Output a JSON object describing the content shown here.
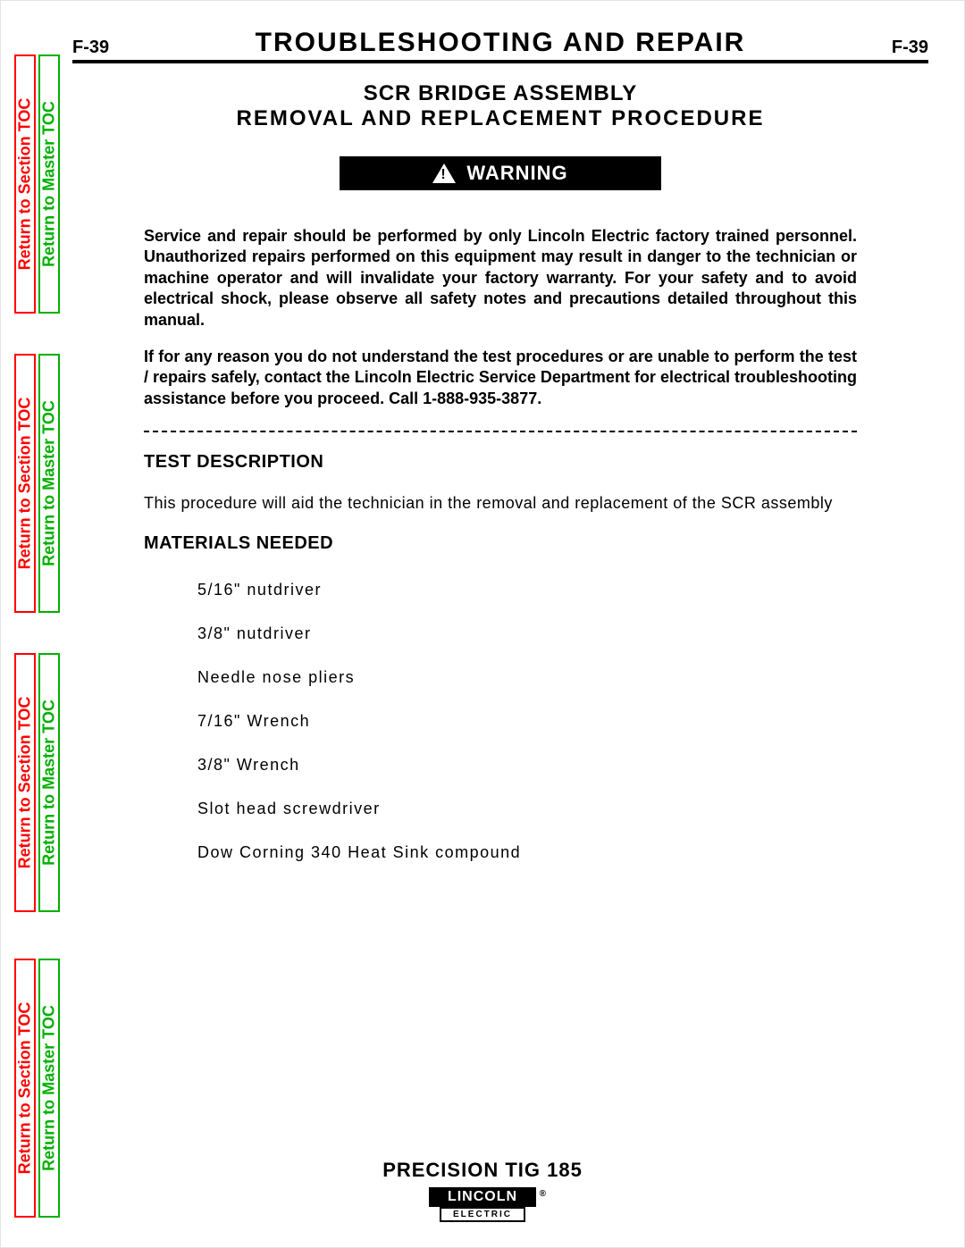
{
  "page_number": "F-39",
  "header_title": "TROUBLESHOOTING  AND  REPAIR",
  "subtitle_line1": "SCR BRIDGE ASSEMBLY",
  "subtitle_line2": "REMOVAL  AND  REPLACEMENT  PROCEDURE",
  "warning_label": "WARNING",
  "warning_para1": "Service and repair should be performed by only Lincoln Electric factory trained personnel. Unauthorized repairs performed on this equipment may result in danger to the technician or machine operator and will invalidate your factory warranty.  For your safety and to avoid electrical shock, please observe all safety notes and precautions detailed throughout this manual.",
  "warning_para2": "If for any reason you do not understand the test procedures or are unable to perform the test / repairs safely, contact the Lincoln Electric Service Department for electrical troubleshooting assistance before you proceed.  Call 1-888-935-3877.",
  "test_desc_h": "TEST DESCRIPTION",
  "test_desc_p": "This procedure will aid the technician in the removal and replacement of the SCR assembly",
  "materials_h": "MATERIALS NEEDED",
  "materials": [
    "5/16\"  nutdriver",
    "3/8\"  nutdriver",
    "Needle  nose  pliers",
    "7/16\"  Wrench",
    "3/8\"  Wrench",
    "Slot  head  screwdriver",
    "Dow  Corning  340  Heat  Sink  compound"
  ],
  "footer_title": "PRECISION TIG 185",
  "logo_top": "LINCOLN",
  "logo_bot": "ELECTRIC",
  "tab_section": "Return to Section TOC",
  "tab_master": "Return to Master TOC",
  "tab_geometry": {
    "tops": [
      60,
      395,
      730,
      1072
    ],
    "heights": [
      290,
      290,
      290,
      290
    ]
  },
  "colors": {
    "red": "#ff0000",
    "green": "#00b000",
    "black": "#000000",
    "white": "#ffffff"
  }
}
